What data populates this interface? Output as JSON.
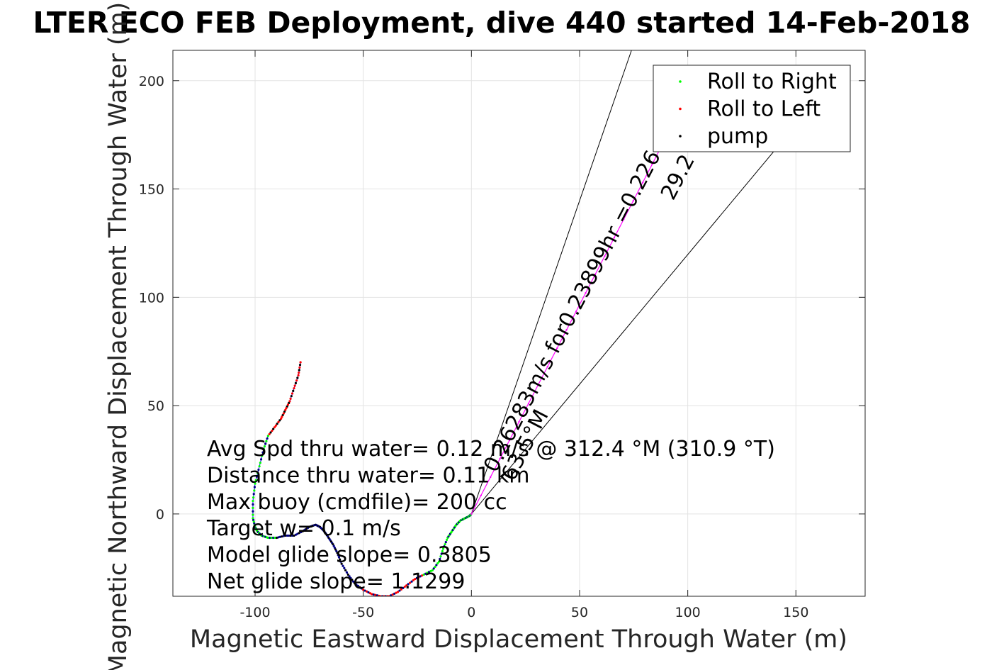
{
  "chart_data": {
    "type": "line",
    "title": "LTER ECO FEB Deployment, dive 440 started 14-Feb-2018",
    "xlabel": "Magnetic Eastward Displacement Through Water (m)",
    "ylabel": "Magnetic Northward Displacement Through Water (m)",
    "xlim": [
      -138,
      182
    ],
    "ylim": [
      -38,
      214
    ],
    "xticks": [
      -100,
      -50,
      0,
      50,
      100,
      150
    ],
    "yticks": [
      0,
      50,
      100,
      150,
      200
    ],
    "grid": true,
    "legend_position": "top-right",
    "legend": [
      {
        "label": "Roll to Right",
        "color": "#00ff00"
      },
      {
        "label": "Roll to Left",
        "color": "#ff0000"
      },
      {
        "label": "pump",
        "color": "#000000"
      }
    ],
    "track": {
      "color": "#0000ff",
      "x": [
        -79,
        -80,
        -82,
        -84,
        -86,
        -88,
        -91,
        -94,
        -96,
        -98,
        -100,
        -101,
        -101,
        -100,
        -99,
        -97,
        -94,
        -90,
        -86,
        -82,
        -78,
        -75,
        -72,
        -70,
        -68,
        -66,
        -64,
        -62,
        -60,
        -57,
        -54,
        -50,
        -46,
        -42,
        -38,
        -34,
        -30,
        -26,
        -22,
        -18,
        -15,
        -13,
        -11,
        -9,
        -7,
        -5,
        -3,
        -1,
        0
      ],
      "y": [
        70,
        64,
        58,
        52,
        48,
        44,
        40,
        36,
        30,
        22,
        14,
        6,
        -2,
        -6,
        -8,
        -10,
        -11,
        -11,
        -10,
        -10,
        -8,
        -6,
        -5,
        -6,
        -8,
        -11,
        -14,
        -18,
        -23,
        -28,
        -32,
        -35,
        -37,
        -38,
        -38,
        -36,
        -33,
        -30,
        -28,
        -26,
        -22,
        -16,
        -11,
        -8,
        -5,
        -3,
        -2,
        -1,
        0
      ]
    },
    "heading_line": {
      "color": "#ff00ff",
      "x": [
        0,
        88
      ],
      "y": [
        0,
        170
      ]
    },
    "cone_lines": [
      {
        "x": [
          0,
          74
        ],
        "y": [
          0,
          214
        ]
      },
      {
        "x": [
          0,
          142
        ],
        "y": [
          0,
          170
        ]
      }
    ],
    "rotated_labels": [
      "0.26283m/s for0.23899hr =0.226",
      "29.2",
      "63.5°M"
    ],
    "annotations": [
      "Avg Spd thru water=  0.12 m/s @ 312.4 °M (310.9 °T)",
      "Distance thru water=  0.11 km",
      "Max buoy (cmdfile)= 200 cc",
      "Target w= 0.1 m/s",
      "Model glide slope= 0.3805",
      "Net glide slope= 1.1299"
    ]
  }
}
